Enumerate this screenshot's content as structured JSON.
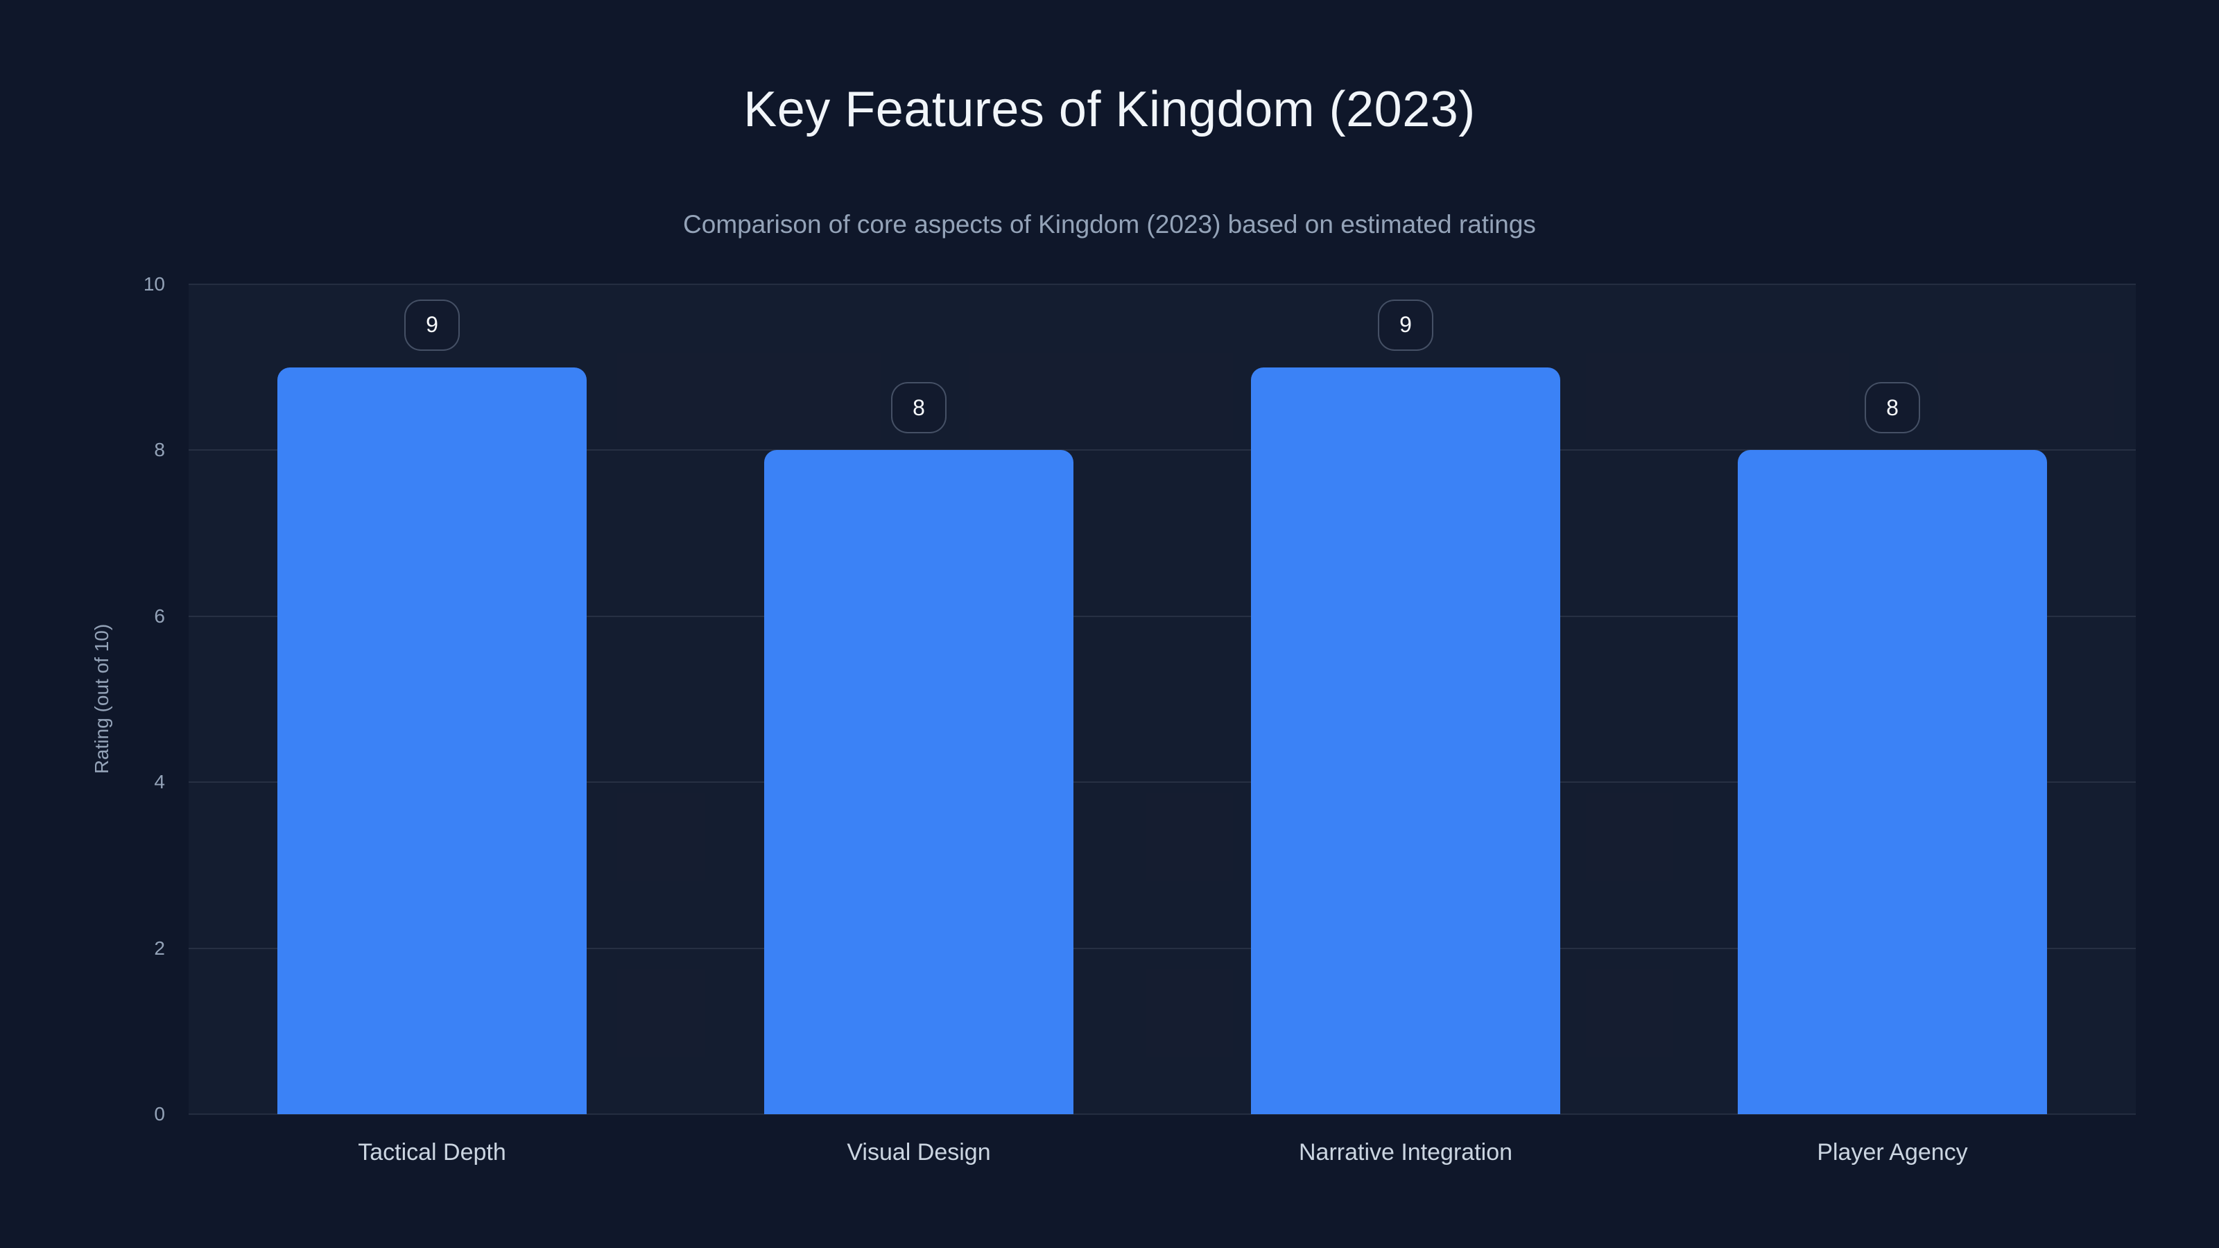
{
  "chart_data": {
    "type": "bar",
    "title": "Key Features of Kingdom (2023)",
    "subtitle": "Comparison of core aspects of Kingdom (2023) based on estimated ratings",
    "categories": [
      "Tactical Depth",
      "Visual Design",
      "Narrative Integration",
      "Player Agency"
    ],
    "values": [
      9,
      8,
      9,
      8
    ],
    "xlabel": "",
    "ylabel": "Rating (out of 10)",
    "ylim": [
      0,
      10
    ],
    "yticks": [
      0,
      2,
      4,
      6,
      8,
      10
    ],
    "grid": true,
    "legend": false,
    "value_labels_shown": true
  },
  "colors": {
    "background": "#0f172a",
    "plot_background": "rgba(148,163,184,0.045)",
    "gridline": "rgba(148,163,184,0.15)",
    "bar_fill": "#3b82f6",
    "title_text": "#f1f5f9",
    "subtitle_text": "#94a3b8",
    "axis_text": "#94a3b8",
    "category_text": "#cbd5e1",
    "badge_text": "#f8fafc",
    "badge_border": "rgba(148,163,184,0.4)"
  }
}
